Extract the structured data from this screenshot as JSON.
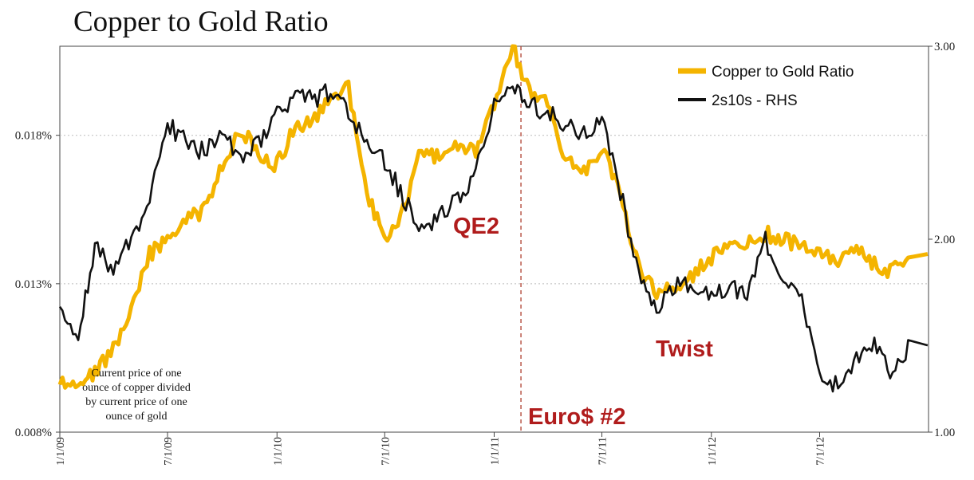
{
  "chart_data": {
    "type": "line",
    "title": "Copper to Gold Ratio",
    "x": [
      "1/1/09",
      "2/1/09",
      "3/1/09",
      "4/1/09",
      "5/1/09",
      "6/1/09",
      "7/1/09",
      "8/1/09",
      "9/1/09",
      "10/1/09",
      "11/1/09",
      "12/1/09",
      "1/1/10",
      "2/1/10",
      "3/1/10",
      "4/1/10",
      "5/1/10",
      "6/1/10",
      "7/1/10",
      "8/1/10",
      "9/1/10",
      "10/1/10",
      "11/1/10",
      "12/1/10",
      "1/1/11",
      "2/1/11",
      "3/1/11",
      "4/1/11",
      "5/1/11",
      "6/1/11",
      "7/1/11",
      "8/1/11",
      "9/1/11",
      "10/1/11",
      "11/1/11",
      "12/1/11",
      "1/1/12",
      "2/1/12",
      "3/1/12",
      "4/1/12",
      "5/1/12",
      "6/1/12",
      "7/1/12",
      "8/1/12",
      "9/1/12",
      "10/1/12",
      "11/1/12",
      "12/1/12"
    ],
    "x_tick_labels": [
      "1/1/09",
      "7/1/09",
      "1/1/10",
      "7/1/10",
      "1/1/11",
      "7/1/11",
      "1/1/12",
      "7/1/12"
    ],
    "x_range": [
      "1/1/09",
      "12/31/12"
    ],
    "y_left": {
      "tick_labels": [
        "0.008%",
        "0.013%",
        "0.018%"
      ],
      "range": [
        0.008,
        0.021
      ]
    },
    "y_right": {
      "tick_labels": [
        "1.00",
        "2.00",
        "3.00"
      ],
      "range": [
        1.0,
        3.0
      ]
    },
    "grid": "horizontal dotted",
    "legend_position": "top-right",
    "series": [
      {
        "name": "Copper to Gold Ratio",
        "axis": "left",
        "color": "#f4b400",
        "values": [
          0.0096,
          0.0098,
          0.01,
          0.0108,
          0.012,
          0.014,
          0.0145,
          0.0151,
          0.0155,
          0.017,
          0.0182,
          0.0174,
          0.017,
          0.0183,
          0.0185,
          0.0192,
          0.0196,
          0.016,
          0.0145,
          0.0155,
          0.0175,
          0.0172,
          0.0176,
          0.0174,
          0.019,
          0.021,
          0.0194,
          0.0192,
          0.0172,
          0.0168,
          0.0176,
          0.016,
          0.0135,
          0.0127,
          0.0128,
          0.0133,
          0.0139,
          0.0142,
          0.0143,
          0.0147,
          0.0145,
          0.0143,
          0.014,
          0.0138,
          0.0141,
          0.0137,
          0.0134,
          0.014
        ]
      },
      {
        "name": "2s10s - RHS",
        "axis": "right",
        "color": "#111111",
        "values": [
          1.65,
          1.5,
          1.95,
          1.85,
          2.0,
          2.2,
          2.6,
          2.5,
          2.45,
          2.55,
          2.4,
          2.5,
          2.65,
          2.75,
          2.72,
          2.77,
          2.65,
          2.5,
          2.4,
          2.22,
          2.05,
          2.12,
          2.2,
          2.35,
          2.7,
          2.82,
          2.7,
          2.65,
          2.6,
          2.55,
          2.62,
          2.25,
          1.8,
          1.65,
          1.75,
          1.78,
          1.7,
          1.75,
          1.72,
          2.0,
          1.78,
          1.7,
          1.28,
          1.25,
          1.38,
          1.45,
          1.3,
          1.45
        ]
      }
    ],
    "annotations": {
      "event_line_at": "2/15/11",
      "labels": [
        "QE2",
        "Euro$ #2",
        "Twist"
      ],
      "note": [
        "Current price of one",
        "ounce of copper divided",
        "by current price of one",
        "ounce of gold"
      ]
    }
  }
}
